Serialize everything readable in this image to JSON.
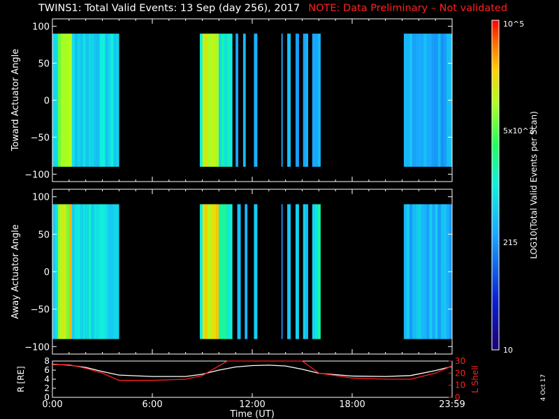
{
  "header": {
    "title": "TWINS1: Total Valid Events: 13 Sep (day 256), 2017",
    "note": "NOTE: Data Preliminary – Not validated"
  },
  "colorbar": {
    "label": "LOG10(Total Valid Events per Scan)",
    "ticks": [
      "10",
      "215",
      "5x10^3",
      "10^5"
    ],
    "range": [
      10,
      100000
    ]
  },
  "timestamp": "4 Oct 17",
  "chart_data": [
    {
      "type": "heatmap",
      "name": "toward",
      "ylabel": "Toward Actuator Angle",
      "ylim": [
        -110,
        110
      ],
      "yticks": [
        100,
        50,
        0,
        -50,
        -100
      ],
      "angle_range": [
        -90,
        90
      ],
      "xlim_hours": [
        0,
        24
      ],
      "segments": [
        {
          "start": 0.0,
          "end": 4.0,
          "level": 0.45
        },
        {
          "start": 8.85,
          "end": 10.8,
          "level": 0.5
        },
        {
          "start": 11.0,
          "end": 11.15,
          "level": 0.38
        },
        {
          "start": 11.45,
          "end": 11.6,
          "level": 0.38
        },
        {
          "start": 12.1,
          "end": 12.3,
          "level": 0.38
        },
        {
          "start": 13.75,
          "end": 13.82,
          "level": 0.32
        },
        {
          "start": 14.1,
          "end": 14.3,
          "level": 0.38
        },
        {
          "start": 14.6,
          "end": 14.8,
          "level": 0.38
        },
        {
          "start": 15.05,
          "end": 15.35,
          "level": 0.38
        },
        {
          "start": 15.6,
          "end": 16.1,
          "level": 0.4
        },
        {
          "start": 21.1,
          "end": 24.0,
          "level": 0.36
        }
      ]
    },
    {
      "type": "heatmap",
      "name": "away",
      "ylabel": "Away Actuator Angle",
      "ylim": [
        -110,
        110
      ],
      "yticks": [
        100,
        50,
        0,
        -50,
        -100
      ],
      "angle_range": [
        -90,
        90
      ],
      "xlim_hours": [
        0,
        24
      ],
      "segments": [
        {
          "start": 0.0,
          "end": 4.0,
          "level": 0.48
        },
        {
          "start": 8.85,
          "end": 10.8,
          "level": 0.52
        },
        {
          "start": 11.1,
          "end": 11.3,
          "level": 0.42
        },
        {
          "start": 11.55,
          "end": 11.7,
          "level": 0.42
        },
        {
          "start": 12.1,
          "end": 12.3,
          "level": 0.38
        },
        {
          "start": 13.75,
          "end": 13.82,
          "level": 0.32
        },
        {
          "start": 14.1,
          "end": 14.3,
          "level": 0.42
        },
        {
          "start": 14.6,
          "end": 14.8,
          "level": 0.42
        },
        {
          "start": 15.05,
          "end": 15.35,
          "level": 0.42
        },
        {
          "start": 15.6,
          "end": 16.1,
          "level": 0.5
        },
        {
          "start": 21.1,
          "end": 24.0,
          "level": 0.38
        }
      ]
    },
    {
      "type": "line",
      "name": "ephemeris",
      "xlabel": "Time (UT)",
      "ylabel_left": "R [RE]",
      "ylabel_right": "L Shell",
      "ylim_left": [
        0,
        8
      ],
      "ylim_right": [
        0,
        30
      ],
      "yticks_left": [
        0,
        2,
        4,
        6,
        8
      ],
      "yticks_right": [
        0,
        10,
        20,
        30
      ],
      "xticks": [
        "0:00",
        "6:00",
        "12:00",
        "18:00",
        "23:59"
      ],
      "series": [
        {
          "name": "R",
          "axis": "left",
          "color": "#ffffff",
          "x": [
            0,
            1,
            2,
            3,
            4,
            6,
            8,
            9,
            10,
            11,
            12,
            13,
            14,
            15,
            16,
            18,
            20,
            21.5,
            23,
            24
          ],
          "y": [
            7.3,
            7.1,
            6.6,
            5.7,
            4.9,
            4.6,
            4.6,
            5.1,
            6.0,
            6.7,
            7.0,
            7.1,
            6.9,
            6.2,
            5.3,
            4.7,
            4.6,
            4.8,
            5.9,
            6.8
          ]
        },
        {
          "name": "L Shell",
          "axis": "right",
          "color": "#ff2020",
          "x": [
            0,
            1,
            2,
            3,
            4,
            6,
            8,
            9,
            10,
            10.5,
            11,
            14.5,
            15,
            16,
            18,
            20,
            21.5,
            23,
            24
          ],
          "y": [
            27,
            27,
            24,
            20,
            14,
            14,
            15,
            18,
            26,
            30,
            32,
            32,
            30,
            20,
            16,
            15,
            15,
            20,
            26
          ]
        }
      ]
    }
  ]
}
